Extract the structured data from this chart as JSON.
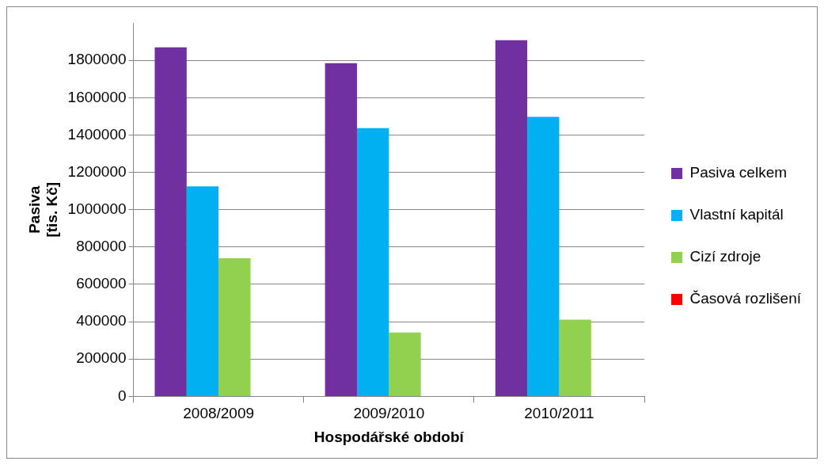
{
  "chart_data": {
    "type": "bar",
    "xlabel": "Hospodářské období",
    "ylabel": "Pasiva [tis. Kč]",
    "categories": [
      "2008/2009",
      "2009/2010",
      "2010/2011"
    ],
    "series": [
      {
        "name": "Pasiva celkem",
        "color": "#7030a0",
        "values": [
          1870000,
          1785000,
          1908000
        ]
      },
      {
        "name": "Vlastní kapitál",
        "color": "#00b0f0",
        "values": [
          1125000,
          1437000,
          1497000
        ]
      },
      {
        "name": "Cizí zdroje",
        "color": "#92d050",
        "values": [
          740000,
          342000,
          411000
        ]
      },
      {
        "name": "Časová rozlišení",
        "color": "#ff0000",
        "values": [
          0,
          0,
          0
        ]
      }
    ],
    "ylim": [
      0,
      2000000
    ],
    "yticks": [
      0,
      200000,
      400000,
      600000,
      800000,
      1000000,
      1200000,
      1400000,
      1600000,
      1800000
    ],
    "grid": "y",
    "legend": "right"
  }
}
